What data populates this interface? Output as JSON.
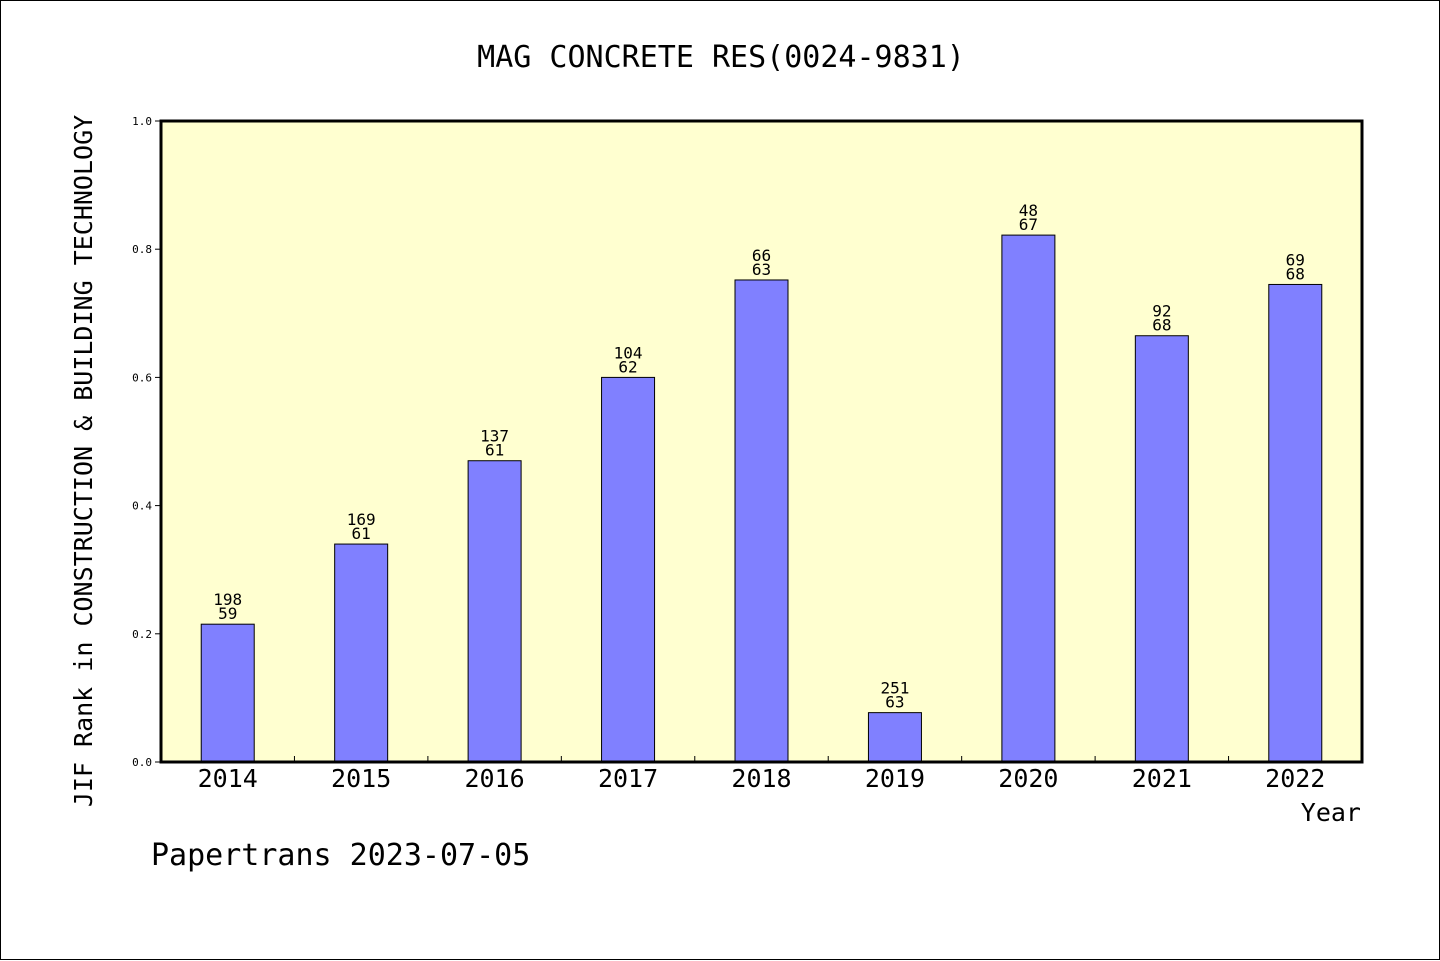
{
  "chart_data": {
    "type": "bar",
    "title": "MAG CONCRETE RES(0024-9831)",
    "xlabel": "Year",
    "ylabel": "JIF Rank in CONSTRUCTION & BUILDING TECHNOLOGY",
    "categories": [
      "2014",
      "2015",
      "2016",
      "2017",
      "2018",
      "2019",
      "2020",
      "2021",
      "2022"
    ],
    "values": [
      0.215,
      0.34,
      0.47,
      0.6,
      0.752,
      0.077,
      0.822,
      0.665,
      0.745
    ],
    "bar_labels_top": [
      "198",
      "169",
      "137",
      "104",
      "66",
      "251",
      "48",
      "92",
      "69"
    ],
    "bar_labels_bottom": [
      "59",
      "61",
      "61",
      "62",
      "63",
      "63",
      "67",
      "68",
      "68"
    ],
    "ylim": [
      0,
      1.0
    ],
    "yticks": [
      "0.0",
      "0.2",
      "0.4",
      "0.6",
      "0.8",
      "1.0"
    ],
    "grid": false,
    "legend": "none",
    "colors": {
      "bar_fill": "#8080ff",
      "plot_background": "#ffffd0",
      "axis": "#000000"
    }
  },
  "footer": {
    "credit": "Papertrans 2023-07-05"
  }
}
